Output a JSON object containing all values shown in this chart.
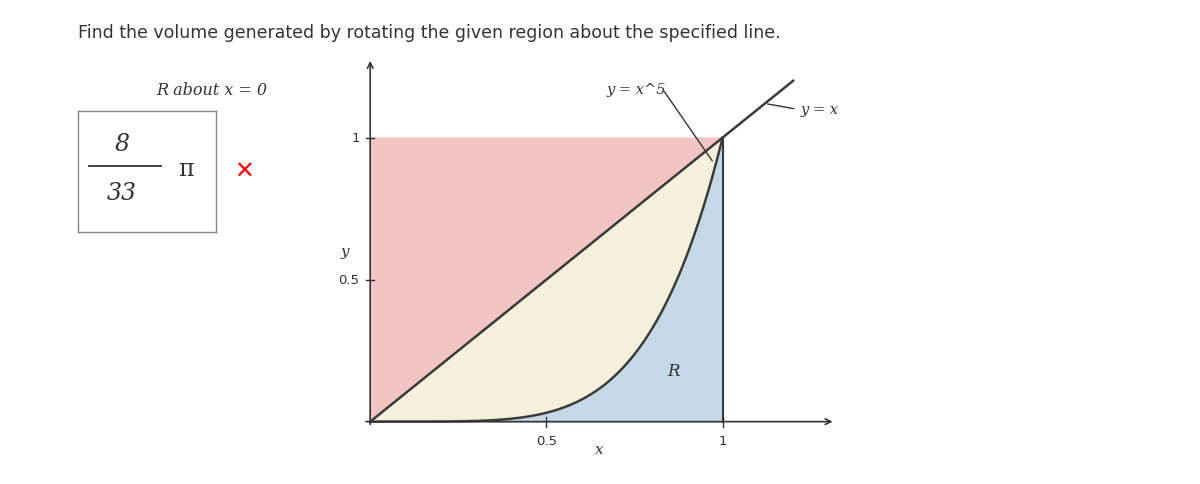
{
  "title": "Find the volume generated by rotating the given region about the specified line.",
  "subtitle": "R about x = 0",
  "answer_numerator": "8",
  "answer_denominator": "33",
  "answer_symbol": "π",
  "label_y_eq_x5": "y = x^5",
  "label_y_eq_x": "y = x",
  "label_R": "R",
  "label_y": "y",
  "label_x": "x",
  "tick_05": "0.5",
  "tick_1": "1",
  "tick_y_05": "0.5",
  "tick_y_1": "1",
  "xlim": [
    -0.08,
    1.35
  ],
  "ylim": [
    -0.1,
    1.3
  ],
  "color_pink": "#f2c4c4",
  "color_cream": "#f5f0dc",
  "color_blue": "#c5d8e8",
  "color_line": "#3a3a3a",
  "bg_color": "#ffffff",
  "font_color": "#333333"
}
